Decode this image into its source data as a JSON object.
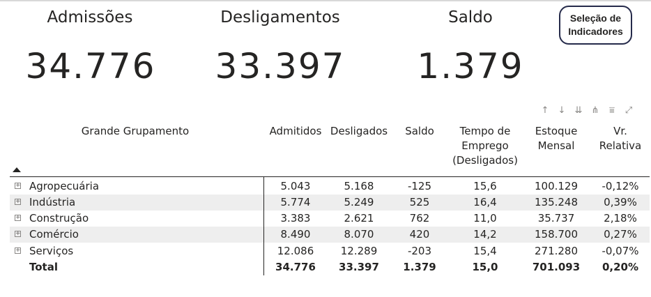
{
  "kpis": [
    {
      "label": "Admissões",
      "value": "34.776"
    },
    {
      "label": "Desligamentos",
      "value": "33.397"
    },
    {
      "label": "Saldo",
      "value": "1.379"
    }
  ],
  "selection_button": {
    "label_line1": "Seleção de",
    "label_line2": "Indicadores"
  },
  "toolbar": [
    {
      "icon": "sort-ascending-icon",
      "glyph": "↑"
    },
    {
      "icon": "sort-descending-icon",
      "glyph": "↓"
    },
    {
      "icon": "expand-all-down-icon",
      "glyph": "⇊"
    },
    {
      "icon": "hierarchy-icon",
      "glyph": "⋔"
    },
    {
      "icon": "filter-icon",
      "glyph": "⩸"
    },
    {
      "icon": "focus-mode-icon",
      "glyph": "⤢"
    }
  ],
  "table": {
    "headers": [
      {
        "label": "Grande Grupamento"
      },
      {
        "label": "Admitidos"
      },
      {
        "label": "Desligados"
      },
      {
        "label": "Saldo"
      },
      {
        "label_line1": "Tempo de",
        "label_line2": "Emprego",
        "label_line3": "(Desligados)"
      },
      {
        "label_line1": "Estoque",
        "label_line2": "Mensal"
      },
      {
        "label_line1": "Vr.",
        "label_line2": "Relativa"
      }
    ],
    "rows": [
      {
        "name": "Agropecuária",
        "admitidos": "5.043",
        "desligados": "5.168",
        "saldo": "-125",
        "tempo": "15,6",
        "estoque": "100.129",
        "vr": "-0,12%"
      },
      {
        "name": "Indústria",
        "admitidos": "5.774",
        "desligados": "5.249",
        "saldo": "525",
        "tempo": "16,4",
        "estoque": "135.248",
        "vr": "0,39%"
      },
      {
        "name": "Construção",
        "admitidos": "3.383",
        "desligados": "2.621",
        "saldo": "762",
        "tempo": "11,0",
        "estoque": "35.737",
        "vr": "2,18%"
      },
      {
        "name": "Comércio",
        "admitidos": "8.490",
        "desligados": "8.070",
        "saldo": "420",
        "tempo": "14,2",
        "estoque": "158.700",
        "vr": "0,27%"
      },
      {
        "name": "Serviços",
        "admitidos": "12.086",
        "desligados": "12.289",
        "saldo": "-203",
        "tempo": "15,4",
        "estoque": "271.280",
        "vr": "-0,07%"
      }
    ],
    "total": {
      "name": "Total",
      "admitidos": "34.776",
      "desligados": "33.397",
      "saldo": "1.379",
      "tempo": "15,0",
      "estoque": "701.093",
      "vr": "0,20%"
    }
  }
}
